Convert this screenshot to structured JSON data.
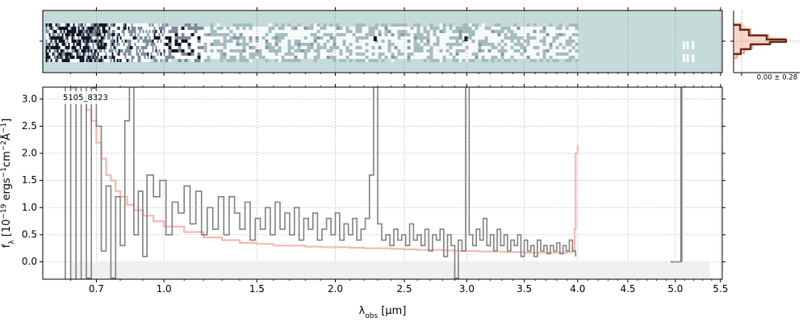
{
  "chart_data": [
    {
      "type": "heatmap",
      "panel": "2D spectrum",
      "background_color": "#c5dbd9",
      "description_colors": {
        "light": "#ffffff",
        "dark": "#0a0f1e",
        "mid": "#7a8c9a"
      }
    },
    {
      "type": "line",
      "panel": "cross-dispersion profile",
      "annotation": "0.00 ± 0.28",
      "colors": {
        "profile": "#5c2a1e",
        "model": "#f4a58a"
      }
    },
    {
      "type": "line",
      "panel": "1D spectrum",
      "label": "5105_8323",
      "xlabel": "λobs [μm]",
      "ylabel": "fλ [10⁻¹⁹ ergs⁻¹cm⁻²Å⁻¹]",
      "xscale": "sqrt",
      "xlim": [
        0.5,
        5.52
      ],
      "ylim": [
        -0.32,
        3.22
      ],
      "xticks": [
        "0.7",
        "1.0",
        "1.5",
        "2.0",
        "2.5",
        "3.0",
        "3.5",
        "4.0",
        "4.5",
        "5.0",
        "5.5"
      ],
      "yticks": [
        "0.0",
        "0.5",
        "1.0",
        "1.5",
        "2.0",
        "2.5",
        "3.0"
      ],
      "grid": true,
      "colors": {
        "data": "#808080",
        "model": "#f5b8b0",
        "band": "#e8e8e8"
      },
      "series": [
        {
          "role": "data",
          "x": [
            0.56,
            0.58,
            0.6,
            0.62,
            0.64,
            0.66,
            0.68,
            0.7,
            0.72,
            0.74,
            0.76,
            0.78,
            0.8,
            0.82,
            0.84,
            0.86,
            0.88,
            0.9,
            0.92,
            0.95,
            0.98,
            1.01,
            1.04,
            1.07,
            1.1,
            1.13,
            1.16,
            1.19,
            1.22,
            1.25,
            1.28,
            1.31,
            1.34,
            1.37,
            1.4,
            1.43,
            1.46,
            1.49,
            1.52,
            1.55,
            1.58,
            1.61,
            1.64,
            1.67,
            1.7,
            1.73,
            1.76,
            1.79,
            1.82,
            1.85,
            1.88,
            1.91,
            1.94,
            1.97,
            2.0,
            2.03,
            2.06,
            2.09,
            2.12,
            2.15,
            2.18,
            2.21,
            2.24,
            2.27,
            2.3,
            2.33,
            2.36,
            2.39,
            2.42,
            2.45,
            2.48,
            2.51,
            2.54,
            2.57,
            2.6,
            2.63,
            2.66,
            2.69,
            2.72,
            2.75,
            2.78,
            2.81,
            2.84,
            2.87,
            2.9,
            2.93,
            2.96,
            2.99,
            3.02,
            3.05,
            3.08,
            3.11,
            3.14,
            3.17,
            3.2,
            3.23,
            3.26,
            3.29,
            3.32,
            3.35,
            3.38,
            3.41,
            3.44,
            3.47,
            3.5,
            3.53,
            3.56,
            3.59,
            3.62,
            3.65,
            3.68,
            3.71,
            3.74,
            3.77,
            3.8,
            3.83,
            3.86,
            3.89,
            3.92,
            3.95,
            3.98
          ],
          "y": [
            3.5,
            -0.5,
            3.5,
            -0.4,
            3.3,
            -0.3,
            3.2,
            2.5,
            0.2,
            1.4,
            -0.3,
            1.2,
            0.3,
            2.6,
            3.3,
            0.5,
            1.3,
            0.1,
            1.6,
            1.2,
            1.5,
            0.5,
            1.1,
            0.9,
            1.4,
            0.7,
            1.3,
            0.5,
            1.0,
            0.6,
            1.2,
            0.5,
            1.2,
            0.9,
            0.6,
            1.1,
            0.4,
            0.8,
            0.6,
            1.0,
            0.5,
            1.1,
            0.6,
            0.9,
            0.5,
            1.0,
            0.4,
            0.8,
            0.6,
            0.9,
            0.4,
            0.6,
            0.8,
            0.5,
            0.9,
            0.4,
            0.7,
            0.5,
            0.8,
            0.4,
            0.6,
            0.8,
            1.6,
            3.3,
            0.7,
            0.4,
            0.5,
            0.3,
            0.6,
            0.4,
            0.5,
            0.3,
            0.7,
            0.4,
            0.5,
            0.3,
            0.6,
            0.2,
            0.5,
            0.4,
            0.6,
            0.1,
            0.5,
            0.3,
            -0.3,
            0.4,
            0.2,
            3.3,
            0.5,
            0.3,
            0.6,
            0.4,
            0.8,
            0.3,
            0.5,
            0.2,
            0.6,
            0.3,
            0.5,
            0.2,
            0.4,
            0.3,
            0.5,
            0.1,
            0.4,
            0.2,
            0.3,
            0.1,
            0.4,
            0.2,
            0.3,
            0.15,
            0.3,
            0.2,
            0.35,
            0.15,
            0.3,
            0.2,
            0.4,
            0.2,
            0.1
          ]
        },
        {
          "role": "data",
          "x": [
            4.98,
            5.06,
            5.07
          ],
          "y": [
            0.0,
            3.3,
            0.0
          ]
        },
        {
          "role": "model",
          "x": [
            0.6,
            0.62,
            0.64,
            0.66,
            0.68,
            0.7,
            0.72,
            0.74,
            0.76,
            0.78,
            0.8,
            0.83,
            0.86,
            0.9,
            0.95,
            1.0,
            1.1,
            1.2,
            1.3,
            1.4,
            1.5,
            1.6,
            1.7,
            1.8,
            1.9,
            2.0,
            2.1,
            2.2,
            2.3,
            2.4,
            2.5,
            2.6,
            2.7,
            2.8,
            2.9,
            3.0,
            3.1,
            3.2,
            3.3,
            3.4,
            3.5,
            3.6,
            3.7,
            3.8,
            3.9,
            3.95,
            3.97,
            3.98,
            4.0
          ],
          "y": [
            3.2,
            3.1,
            3.0,
            2.8,
            2.6,
            2.2,
            1.9,
            1.6,
            1.5,
            1.3,
            1.2,
            1.05,
            0.95,
            0.85,
            0.75,
            0.65,
            0.55,
            0.45,
            0.4,
            0.35,
            0.33,
            0.3,
            0.3,
            0.28,
            0.27,
            0.27,
            0.26,
            0.25,
            0.25,
            0.24,
            0.23,
            0.22,
            0.22,
            0.21,
            0.2,
            0.2,
            0.19,
            0.19,
            0.18,
            0.18,
            0.17,
            0.17,
            0.17,
            0.17,
            0.18,
            0.2,
            0.6,
            2.0,
            2.15
          ]
        }
      ]
    }
  ]
}
